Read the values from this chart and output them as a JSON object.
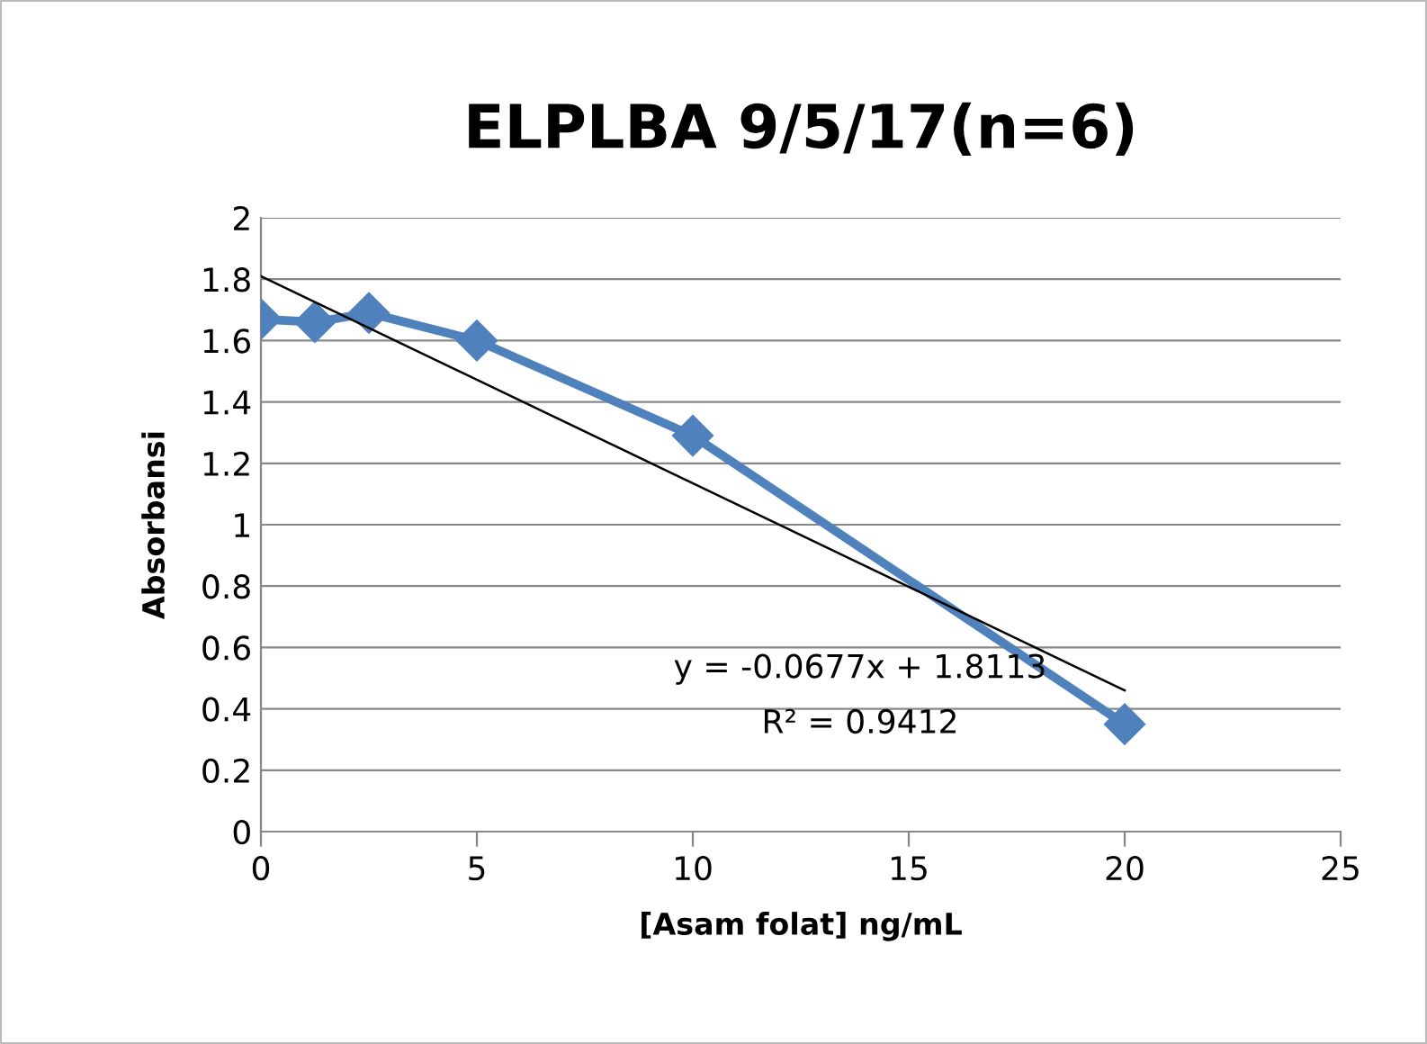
{
  "chart_data": {
    "type": "line",
    "title": "ELPLBA 9/5/17(n=6)",
    "xlabel": "[Asam folat] ng/mL",
    "ylabel": "Absorbansi",
    "series": [
      {
        "x": [
          0,
          1.25,
          2.5,
          5,
          10,
          20
        ],
        "values": [
          1.67,
          1.66,
          1.69,
          1.6,
          1.29,
          0.35
        ],
        "color": "#4f81bd",
        "marker": "diamond",
        "line_style": "solid"
      },
      {
        "type": "line",
        "x": [
          0,
          20
        ],
        "values": [
          1.81,
          0.46
        ],
        "color": "#000000",
        "marker": "none",
        "line_style": "solid"
      }
    ],
    "annotations": [
      "y = -0.0677x + 1.8113",
      "R² = 0.9412"
    ],
    "xlim": [
      0,
      25
    ],
    "xticks": [
      0,
      5,
      10,
      15,
      20,
      25
    ],
    "ylim": [
      0,
      2
    ],
    "yticks": [
      0,
      0.2,
      0.4,
      0.6,
      0.8,
      1,
      1.2,
      1.4,
      1.6,
      1.8,
      2
    ],
    "grid": "y",
    "legend": false
  }
}
